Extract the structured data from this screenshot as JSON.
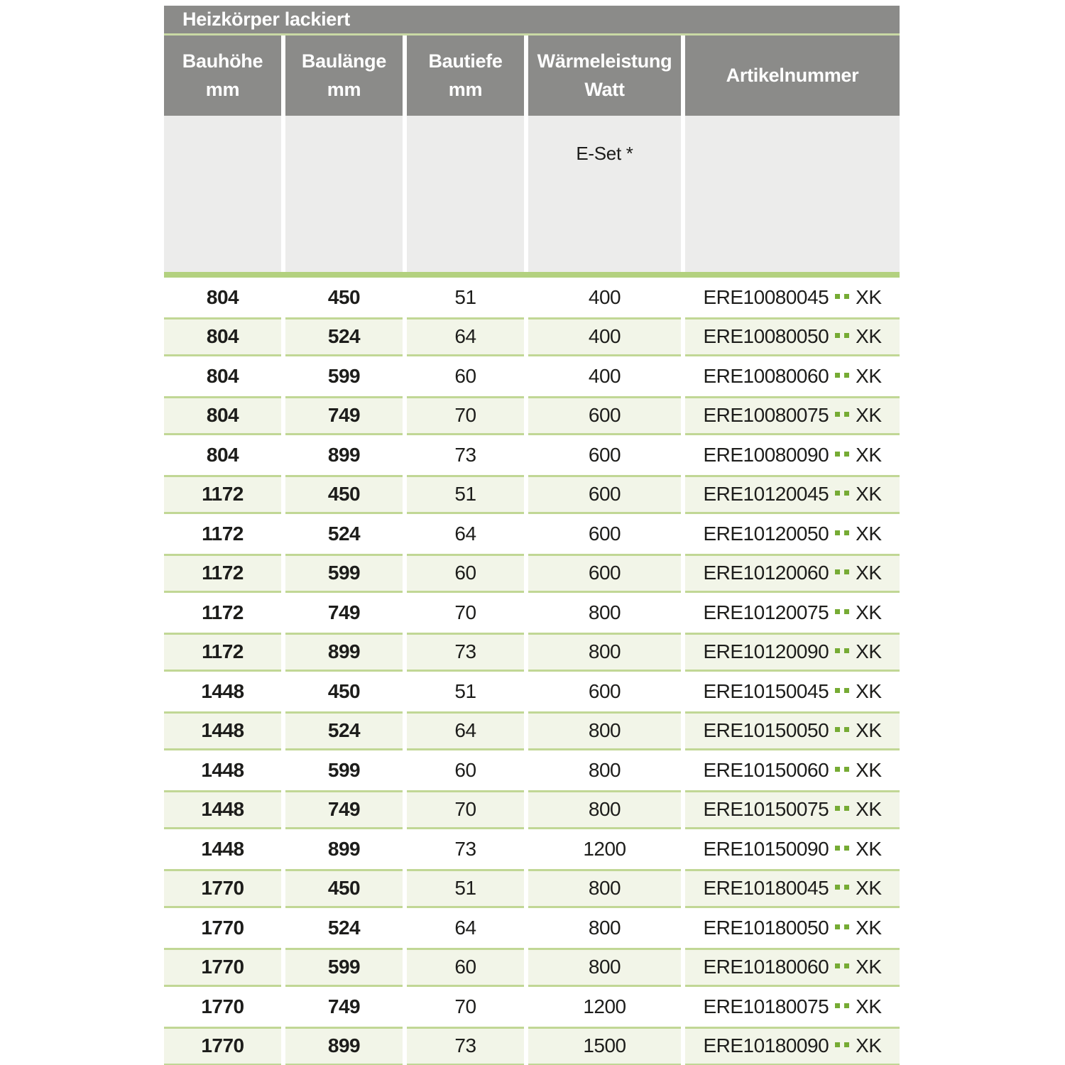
{
  "colors": {
    "header_gray": "#8b8b89",
    "subheader_gray": "#ececeb",
    "title_line_green": "#c9d9a4",
    "separator_bar_green": "#b3d17f",
    "row_green_bg": "#f2f5e8",
    "row_green_border": "#c1d795",
    "dot_green": "#76ab34",
    "text_dark": "#1d1d1b"
  },
  "table": {
    "title": "Heizkörper lackiert",
    "columns": [
      {
        "line1": "Bauhöhe",
        "line2": "mm"
      },
      {
        "line1": "Baulänge",
        "line2": "mm"
      },
      {
        "line1": "Bautiefe",
        "line2": "mm"
      },
      {
        "line1": "Wärmeleistung",
        "line2": "Watt"
      },
      {
        "line1": "Artikelnummer",
        "line2": ""
      }
    ],
    "subheader": {
      "watt_note": "E-Set *"
    },
    "artikelnummer_dots": "..",
    "artikelnummer_suffix": "XK",
    "rows": [
      {
        "bauhoehe": "804",
        "baulaenge": "450",
        "bautiefe": "51",
        "watt": "400",
        "artikel_prefix": "ERE10080045"
      },
      {
        "bauhoehe": "804",
        "baulaenge": "524",
        "bautiefe": "64",
        "watt": "400",
        "artikel_prefix": "ERE10080050"
      },
      {
        "bauhoehe": "804",
        "baulaenge": "599",
        "bautiefe": "60",
        "watt": "400",
        "artikel_prefix": "ERE10080060"
      },
      {
        "bauhoehe": "804",
        "baulaenge": "749",
        "bautiefe": "70",
        "watt": "600",
        "artikel_prefix": "ERE10080075"
      },
      {
        "bauhoehe": "804",
        "baulaenge": "899",
        "bautiefe": "73",
        "watt": "600",
        "artikel_prefix": "ERE10080090"
      },
      {
        "bauhoehe": "1172",
        "baulaenge": "450",
        "bautiefe": "51",
        "watt": "600",
        "artikel_prefix": "ERE10120045"
      },
      {
        "bauhoehe": "1172",
        "baulaenge": "524",
        "bautiefe": "64",
        "watt": "600",
        "artikel_prefix": "ERE10120050"
      },
      {
        "bauhoehe": "1172",
        "baulaenge": "599",
        "bautiefe": "60",
        "watt": "600",
        "artikel_prefix": "ERE10120060"
      },
      {
        "bauhoehe": "1172",
        "baulaenge": "749",
        "bautiefe": "70",
        "watt": "800",
        "artikel_prefix": "ERE10120075"
      },
      {
        "bauhoehe": "1172",
        "baulaenge": "899",
        "bautiefe": "73",
        "watt": "800",
        "artikel_prefix": "ERE10120090"
      },
      {
        "bauhoehe": "1448",
        "baulaenge": "450",
        "bautiefe": "51",
        "watt": "600",
        "artikel_prefix": "ERE10150045"
      },
      {
        "bauhoehe": "1448",
        "baulaenge": "524",
        "bautiefe": "64",
        "watt": "800",
        "artikel_prefix": "ERE10150050"
      },
      {
        "bauhoehe": "1448",
        "baulaenge": "599",
        "bautiefe": "60",
        "watt": "800",
        "artikel_prefix": "ERE10150060"
      },
      {
        "bauhoehe": "1448",
        "baulaenge": "749",
        "bautiefe": "70",
        "watt": "800",
        "artikel_prefix": "ERE10150075"
      },
      {
        "bauhoehe": "1448",
        "baulaenge": "899",
        "bautiefe": "73",
        "watt": "1200",
        "artikel_prefix": "ERE10150090"
      },
      {
        "bauhoehe": "1770",
        "baulaenge": "450",
        "bautiefe": "51",
        "watt": "800",
        "artikel_prefix": "ERE10180045"
      },
      {
        "bauhoehe": "1770",
        "baulaenge": "524",
        "bautiefe": "64",
        "watt": "800",
        "artikel_prefix": "ERE10180050"
      },
      {
        "bauhoehe": "1770",
        "baulaenge": "599",
        "bautiefe": "60",
        "watt": "800",
        "artikel_prefix": "ERE10180060"
      },
      {
        "bauhoehe": "1770",
        "baulaenge": "749",
        "bautiefe": "70",
        "watt": "1200",
        "artikel_prefix": "ERE10180075"
      },
      {
        "bauhoehe": "1770",
        "baulaenge": "899",
        "bautiefe": "73",
        "watt": "1500",
        "artikel_prefix": "ERE10180090"
      }
    ]
  }
}
